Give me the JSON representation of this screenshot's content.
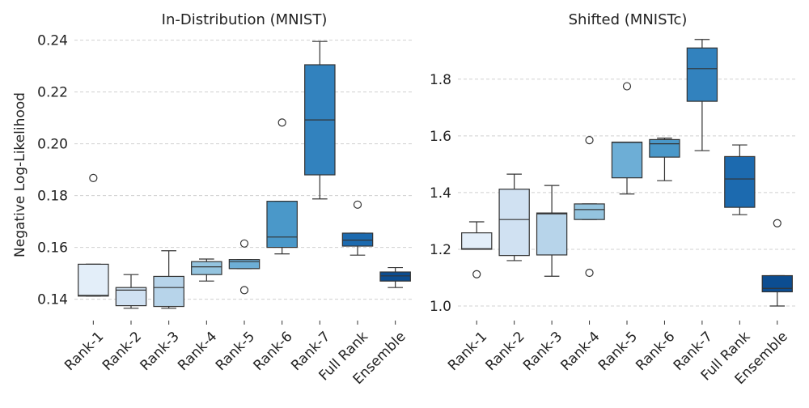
{
  "chart_data": [
    {
      "type": "box",
      "title": "In-Distribution (MNIST)",
      "ylabel": "Negative Log-Likelihood",
      "xlabel": "",
      "grid": "horizontal dashed",
      "ylim": [
        0.133,
        0.243
      ],
      "yticks": [
        "0.14",
        "0.16",
        "0.18",
        "0.20",
        "0.22",
        "0.24"
      ],
      "categories": [
        "Rank-1",
        "Rank-2",
        "Rank-3",
        "Rank-4",
        "Rank-5",
        "Rank-6",
        "Rank-7",
        "Full Rank",
        "Ensemble"
      ],
      "colors": [
        "#e3eef9",
        "#d0e1f2",
        "#b7d4ea",
        "#94c4df",
        "#6daed6",
        "#4a98c9",
        "#3282be",
        "#1c6aaf",
        "#0c4d91"
      ],
      "boxes": [
        {
          "whislo": 0.1412,
          "q1": 0.1412,
          "med": 0.1415,
          "q3": 0.1535,
          "whishi": 0.1535,
          "fliers": [
            0.1868
          ]
        },
        {
          "whislo": 0.1365,
          "q1": 0.1375,
          "med": 0.1435,
          "q3": 0.1445,
          "whishi": 0.1495,
          "fliers": []
        },
        {
          "whislo": 0.1365,
          "q1": 0.1372,
          "med": 0.1445,
          "q3": 0.1488,
          "whishi": 0.1587,
          "fliers": []
        },
        {
          "whislo": 0.147,
          "q1": 0.1495,
          "med": 0.1525,
          "q3": 0.1545,
          "whishi": 0.1555,
          "fliers": []
        },
        {
          "whislo": 0.1518,
          "q1": 0.1518,
          "med": 0.1545,
          "q3": 0.1553,
          "whishi": 0.1553,
          "fliers": [
            0.1615,
            0.1435
          ]
        },
        {
          "whislo": 0.1575,
          "q1": 0.16,
          "med": 0.164,
          "q3": 0.1778,
          "whishi": 0.1778,
          "fliers": [
            0.2082
          ]
        },
        {
          "whislo": 0.1787,
          "q1": 0.188,
          "med": 0.2092,
          "q3": 0.2305,
          "whishi": 0.2395,
          "fliers": []
        },
        {
          "whislo": 0.157,
          "q1": 0.1605,
          "med": 0.1628,
          "q3": 0.1655,
          "whishi": 0.1655,
          "fliers": [
            0.1765
          ]
        },
        {
          "whislo": 0.1445,
          "q1": 0.147,
          "med": 0.149,
          "q3": 0.1505,
          "whishi": 0.1522,
          "fliers": []
        }
      ]
    },
    {
      "type": "box",
      "title": "Shifted (MNISTc)",
      "ylabel": "",
      "xlabel": "",
      "grid": "horizontal dashed",
      "ylim": [
        0.96,
        1.965
      ],
      "yticks": [
        "1.0",
        "1.2",
        "1.4",
        "1.6",
        "1.8"
      ],
      "categories": [
        "Rank-1",
        "Rank-2",
        "Rank-3",
        "Rank-4",
        "Rank-5",
        "Rank-6",
        "Rank-7",
        "Full Rank",
        "Ensemble"
      ],
      "colors": [
        "#e3eef9",
        "#d0e1f2",
        "#b7d4ea",
        "#94c4df",
        "#6daed6",
        "#4a98c9",
        "#3282be",
        "#1c6aaf",
        "#0c4d91"
      ],
      "boxes": [
        {
          "whislo": 1.2,
          "q1": 1.2,
          "med": 1.202,
          "q3": 1.258,
          "whishi": 1.297,
          "fliers": [
            1.112
          ]
        },
        {
          "whislo": 1.16,
          "q1": 1.178,
          "med": 1.305,
          "q3": 1.412,
          "whishi": 1.465,
          "fliers": []
        },
        {
          "whislo": 1.105,
          "q1": 1.18,
          "med": 1.325,
          "q3": 1.328,
          "whishi": 1.425,
          "fliers": []
        },
        {
          "whislo": 1.305,
          "q1": 1.305,
          "med": 1.34,
          "q3": 1.36,
          "whishi": 1.36,
          "fliers": [
            1.585,
            1.117
          ]
        },
        {
          "whislo": 1.395,
          "q1": 1.452,
          "med": 1.577,
          "q3": 1.578,
          "whishi": 1.578,
          "fliers": [
            1.775
          ]
        },
        {
          "whislo": 1.442,
          "q1": 1.525,
          "med": 1.572,
          "q3": 1.587,
          "whishi": 1.592,
          "fliers": []
        },
        {
          "whislo": 1.548,
          "q1": 1.722,
          "med": 1.837,
          "q3": 1.91,
          "whishi": 1.94,
          "fliers": []
        },
        {
          "whislo": 1.322,
          "q1": 1.348,
          "med": 1.448,
          "q3": 1.527,
          "whishi": 1.568,
          "fliers": []
        },
        {
          "whislo": 1.0,
          "q1": 1.05,
          "med": 1.062,
          "q3": 1.107,
          "whishi": 1.107,
          "fliers": [
            1.292
          ]
        }
      ]
    }
  ]
}
